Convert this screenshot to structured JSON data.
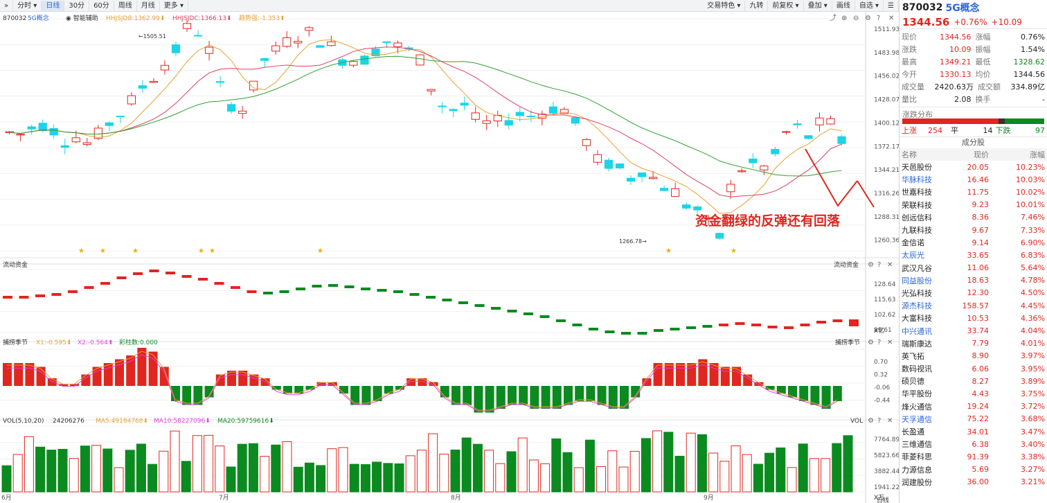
{
  "toolbar": {
    "left_items": [
      "分时",
      "日线",
      "30分",
      "60分",
      "周线",
      "月线",
      "更多"
    ],
    "active": "日线",
    "right_items": [
      "交易特色",
      "九转",
      "前复权",
      "叠加",
      "画线",
      "自选",
      "☰"
    ]
  },
  "main_legend": {
    "code": "870032",
    "name": "5G概念",
    "helper": "智能辅助",
    "hhjsjdb": "HHJSJDB:1362.99",
    "hhjsjdc": "HHJSJDC:1366.13",
    "rate": "趋势强:-1.353"
  },
  "price_axis": [
    "1511.93",
    "1483.98",
    "1456.02",
    "1428.07",
    "1400.12",
    "1372.17",
    "1344.21",
    "1316.26",
    "1288.31",
    "1260.36"
  ],
  "annotations": {
    "high_label": "1505.51",
    "low_label": "1266.78",
    "callout": "资金翻绿的反弹还有回落"
  },
  "flow": {
    "title": "流动资金",
    "axis": [
      "128.64",
      "115.63",
      "102.62",
      "89.61"
    ],
    "unit": "X亿"
  },
  "timing": {
    "title": "捕捞季节",
    "x1": "X1:-0.595",
    "x2": "X2:-0.564",
    "bars": "彩柱数:0.000",
    "axis": [
      "0.70",
      "0.32",
      "-0.06",
      "-0.44"
    ]
  },
  "vol": {
    "title": "VOL(5,10,20)",
    "value": "24206276",
    "ma5": "MA5:49184768",
    "ma10": "MA10:58227096",
    "ma20": "MA20:59759616",
    "axis": [
      "7764.89",
      "5823.66",
      "3882.44",
      "1941.22"
    ],
    "unit": "X万",
    "right_title": "VOL"
  },
  "date_axis": [
    "6月",
    "7月",
    "8月",
    "9月"
  ],
  "period_label": "日线",
  "colors": {
    "up": "#e0261f",
    "down": "#0b8a1f",
    "cyan": "#1bd4e6",
    "ma5": "#e8a030",
    "ma10": "#e04060",
    "ma20": "#30a030"
  },
  "quote": {
    "code": "870032",
    "name": "5G概念",
    "price": "1344.56",
    "pct": "+0.76%",
    "chg": "+10.09",
    "stats": [
      [
        "现价",
        "1344.56",
        "涨幅",
        "0.76%"
      ],
      [
        "涨跌",
        "10.09",
        "振幅",
        "1.54%"
      ],
      [
        "最高",
        "1349.21",
        "最低",
        "1328.62"
      ],
      [
        "今开",
        "1330.13",
        "均价",
        "1344.56"
      ],
      [
        "成交量",
        "2420.63万",
        "成交额",
        "334.89亿"
      ],
      [
        "量比",
        "2.08",
        "换手",
        "-"
      ]
    ],
    "dist_title": "涨跌分布",
    "dist": {
      "up_label": "上涨",
      "up": "254",
      "flat_label": "平",
      "flat": "14",
      "down_label": "下跌",
      "down": "97"
    },
    "cons_title": "成分股",
    "cons_headers": [
      "名称",
      "现价",
      "涨幅"
    ],
    "constituents": [
      {
        "name": "天邑股份",
        "price": "20.05",
        "chg": "10.23%",
        "hl": false
      },
      {
        "name": "华脉科技",
        "price": "16.46",
        "chg": "10.03%",
        "hl": true
      },
      {
        "name": "世嘉科技",
        "price": "11.75",
        "chg": "10.02%",
        "hl": false
      },
      {
        "name": "荣联科技",
        "price": "9.23",
        "chg": "10.01%",
        "hl": false
      },
      {
        "name": "创远信科",
        "price": "8.36",
        "chg": "7.46%",
        "hl": false
      },
      {
        "name": "九联科技",
        "price": "9.67",
        "chg": "7.33%",
        "hl": false
      },
      {
        "name": "金信诺",
        "price": "9.14",
        "chg": "6.90%",
        "hl": false
      },
      {
        "name": "太辰光",
        "price": "33.65",
        "chg": "6.83%",
        "hl": true
      },
      {
        "name": "武汉凡谷",
        "price": "11.06",
        "chg": "5.64%",
        "hl": false
      },
      {
        "name": "同益股份",
        "price": "18.63",
        "chg": "4.78%",
        "hl": true
      },
      {
        "name": "光弘科技",
        "price": "12.30",
        "chg": "4.50%",
        "hl": false
      },
      {
        "name": "源杰科技",
        "price": "158.57",
        "chg": "4.45%",
        "hl": true
      },
      {
        "name": "大富科技",
        "price": "10.53",
        "chg": "4.36%",
        "hl": false
      },
      {
        "name": "中兴通讯",
        "price": "33.74",
        "chg": "4.04%",
        "hl": true
      },
      {
        "name": "瑞斯康达",
        "price": "7.79",
        "chg": "4.01%",
        "hl": false
      },
      {
        "name": "英飞拓",
        "price": "8.90",
        "chg": "3.97%",
        "hl": false
      },
      {
        "name": "数码视讯",
        "price": "6.06",
        "chg": "3.95%",
        "hl": false
      },
      {
        "name": "硕贝德",
        "price": "8.27",
        "chg": "3.89%",
        "hl": false
      },
      {
        "name": "华平股份",
        "price": "4.43",
        "chg": "3.75%",
        "hl": false
      },
      {
        "name": "烽火通信",
        "price": "19.24",
        "chg": "3.72%",
        "hl": false
      },
      {
        "name": "天孚通信",
        "price": "75.22",
        "chg": "3.68%",
        "hl": true
      },
      {
        "name": "长盈通",
        "price": "34.01",
        "chg": "3.47%",
        "hl": false
      },
      {
        "name": "三维通信",
        "price": "6.38",
        "chg": "3.40%",
        "hl": false
      },
      {
        "name": "菲菱科思",
        "price": "91.39",
        "chg": "3.38%",
        "hl": false
      },
      {
        "name": "力源信息",
        "price": "5.69",
        "chg": "3.27%",
        "hl": false
      },
      {
        "name": "润建股份",
        "price": "36.00",
        "chg": "3.21%",
        "hl": false
      }
    ]
  }
}
